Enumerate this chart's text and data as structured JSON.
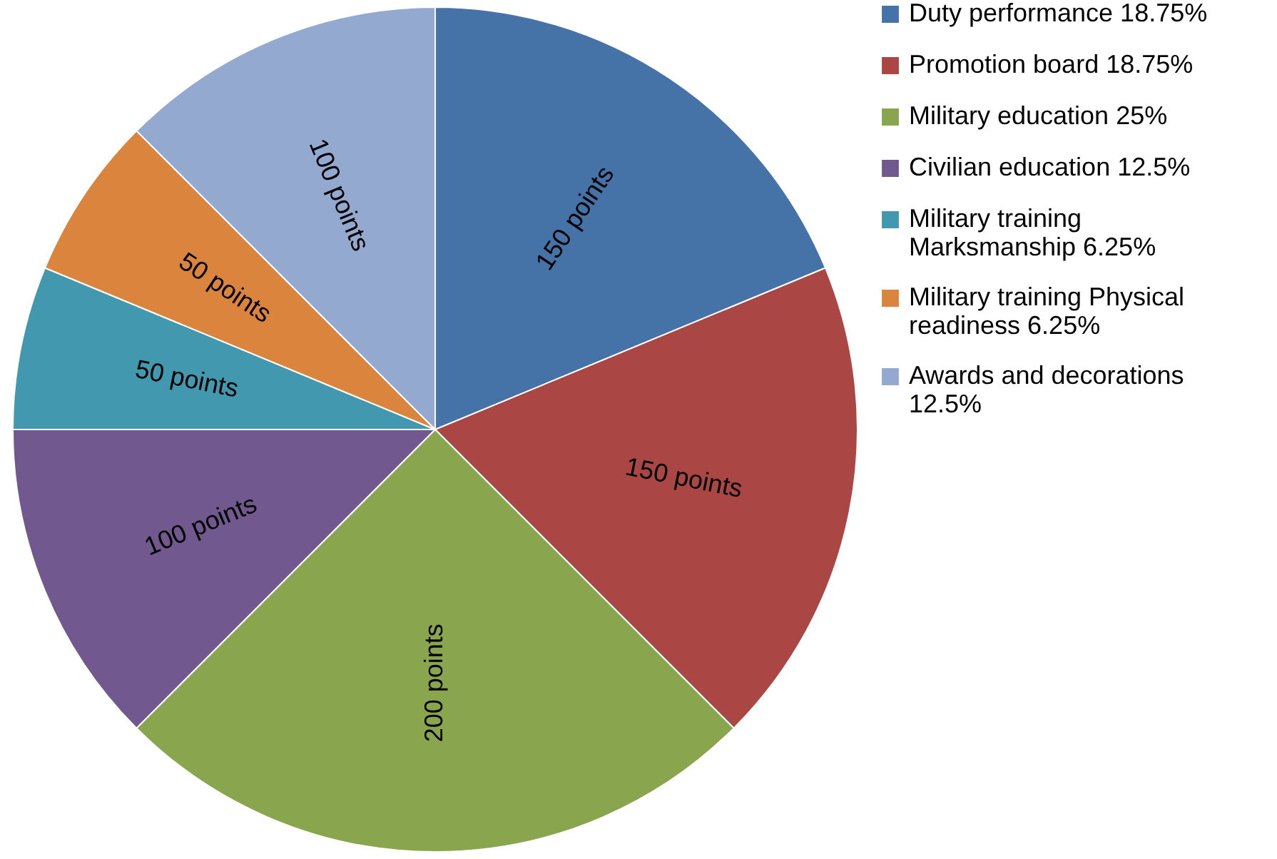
{
  "chart_data": {
    "type": "pie",
    "categories": [
      "Duty performance 18.75%",
      "Promotion board 18.75%",
      "Military education 25%",
      "Civilian education 12.5%",
      "Military training Marksmanship 6.25%",
      "Military training Physical readiness 6.25%",
      "Awards and decorations 12.5%"
    ],
    "values": [
      150,
      150,
      200,
      100,
      50,
      50,
      100
    ],
    "colors": [
      "#4572a7",
      "#aa4643",
      "#89a54e",
      "#71588f",
      "#4198af",
      "#db843d",
      "#93a9cf"
    ],
    "value_labels": [
      "150 points",
      "150 points",
      "200 points",
      "100 points",
      "50 points",
      "50 points",
      "100 points"
    ],
    "legend": "right"
  }
}
